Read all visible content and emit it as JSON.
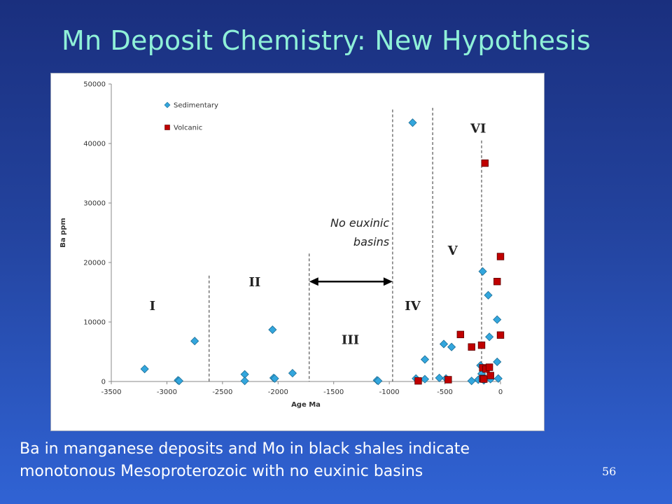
{
  "slide": {
    "title": "Mn Deposit Chemistry: New Hypothesis",
    "caption_lines": [
      "Ba in manganese deposits and Mo in black shales indicate",
      "monotonous Mesoproterozoic with no euxinic basins"
    ],
    "page_number": "56"
  },
  "chart_data": {
    "type": "scatter",
    "xlabel": "Age Ma",
    "ylabel": "Ba ppm",
    "xlim": [
      -3500,
      0
    ],
    "ylim": [
      0,
      50000
    ],
    "xticks": [
      -3500,
      -3000,
      -2500,
      -2000,
      -1500,
      -1000,
      -500,
      0
    ],
    "yticks": [
      0,
      10000,
      20000,
      30000,
      40000,
      50000
    ],
    "grid": false,
    "legend_position": "top-left",
    "series": [
      {
        "name": "Sedimentary",
        "marker": "diamond",
        "color": "#33a6dd",
        "points": [
          {
            "x": -3200,
            "y": 2100
          },
          {
            "x": -2900,
            "y": 200
          },
          {
            "x": -2890,
            "y": 100
          },
          {
            "x": -2750,
            "y": 6800
          },
          {
            "x": -2300,
            "y": 1200
          },
          {
            "x": -2300,
            "y": 100
          },
          {
            "x": -2050,
            "y": 8700
          },
          {
            "x": -2040,
            "y": 600
          },
          {
            "x": -2030,
            "y": 500
          },
          {
            "x": -1870,
            "y": 1400
          },
          {
            "x": -1110,
            "y": 200
          },
          {
            "x": -1100,
            "y": 100
          },
          {
            "x": -790,
            "y": 43500
          },
          {
            "x": -760,
            "y": 500
          },
          {
            "x": -680,
            "y": 3700
          },
          {
            "x": -680,
            "y": 400
          },
          {
            "x": -550,
            "y": 600
          },
          {
            "x": -510,
            "y": 6300
          },
          {
            "x": -490,
            "y": 500
          },
          {
            "x": -440,
            "y": 5800
          },
          {
            "x": -260,
            "y": 100
          },
          {
            "x": -200,
            "y": 300
          },
          {
            "x": -180,
            "y": 2700
          },
          {
            "x": -170,
            "y": 1300
          },
          {
            "x": -160,
            "y": 18500
          },
          {
            "x": -150,
            "y": 200
          },
          {
            "x": -110,
            "y": 14500
          },
          {
            "x": -100,
            "y": 7500
          },
          {
            "x": -90,
            "y": 400
          },
          {
            "x": -30,
            "y": 10400
          },
          {
            "x": -30,
            "y": 3300
          },
          {
            "x": -20,
            "y": 500
          }
        ]
      },
      {
        "name": "Volcanic",
        "marker": "square",
        "color": "#c00000",
        "points": [
          {
            "x": -740,
            "y": 100
          },
          {
            "x": -470,
            "y": 300
          },
          {
            "x": -360,
            "y": 7900
          },
          {
            "x": -260,
            "y": 5800
          },
          {
            "x": -170,
            "y": 6100
          },
          {
            "x": -160,
            "y": 2300
          },
          {
            "x": -160,
            "y": 500
          },
          {
            "x": -150,
            "y": 400
          },
          {
            "x": -140,
            "y": 36700
          },
          {
            "x": -130,
            "y": 2100
          },
          {
            "x": -100,
            "y": 2400
          },
          {
            "x": -90,
            "y": 1000
          },
          {
            "x": -30,
            "y": 16800
          },
          {
            "x": 0,
            "y": 21000
          },
          {
            "x": 0,
            "y": 7800
          }
        ]
      }
    ],
    "dividers": [
      {
        "x": -2620,
        "y_top": 17800
      },
      {
        "x": -1720,
        "y_top": 21500
      },
      {
        "x": -970,
        "y_top": 45700
      },
      {
        "x": -610,
        "y_top": 46000
      },
      {
        "x": -170,
        "y_top": 40500
      }
    ],
    "era_labels": [
      {
        "text": "I",
        "x": -3130,
        "y": 12000
      },
      {
        "text": "II",
        "x": -2210,
        "y": 16000
      },
      {
        "text": "III",
        "x": -1350,
        "y": 6300
      },
      {
        "text": "IV",
        "x": -790,
        "y": 12000
      },
      {
        "text": "V",
        "x": -430,
        "y": 21300
      },
      {
        "text": "VI",
        "x": -200,
        "y": 41800
      }
    ],
    "arrow": {
      "x1": -1720,
      "x2": -970,
      "y": 16800
    },
    "annotation": {
      "lines": [
        "No euxinic",
        "basins"
      ],
      "x": -1000,
      "y_lines": [
        26000,
        22800
      ]
    }
  }
}
